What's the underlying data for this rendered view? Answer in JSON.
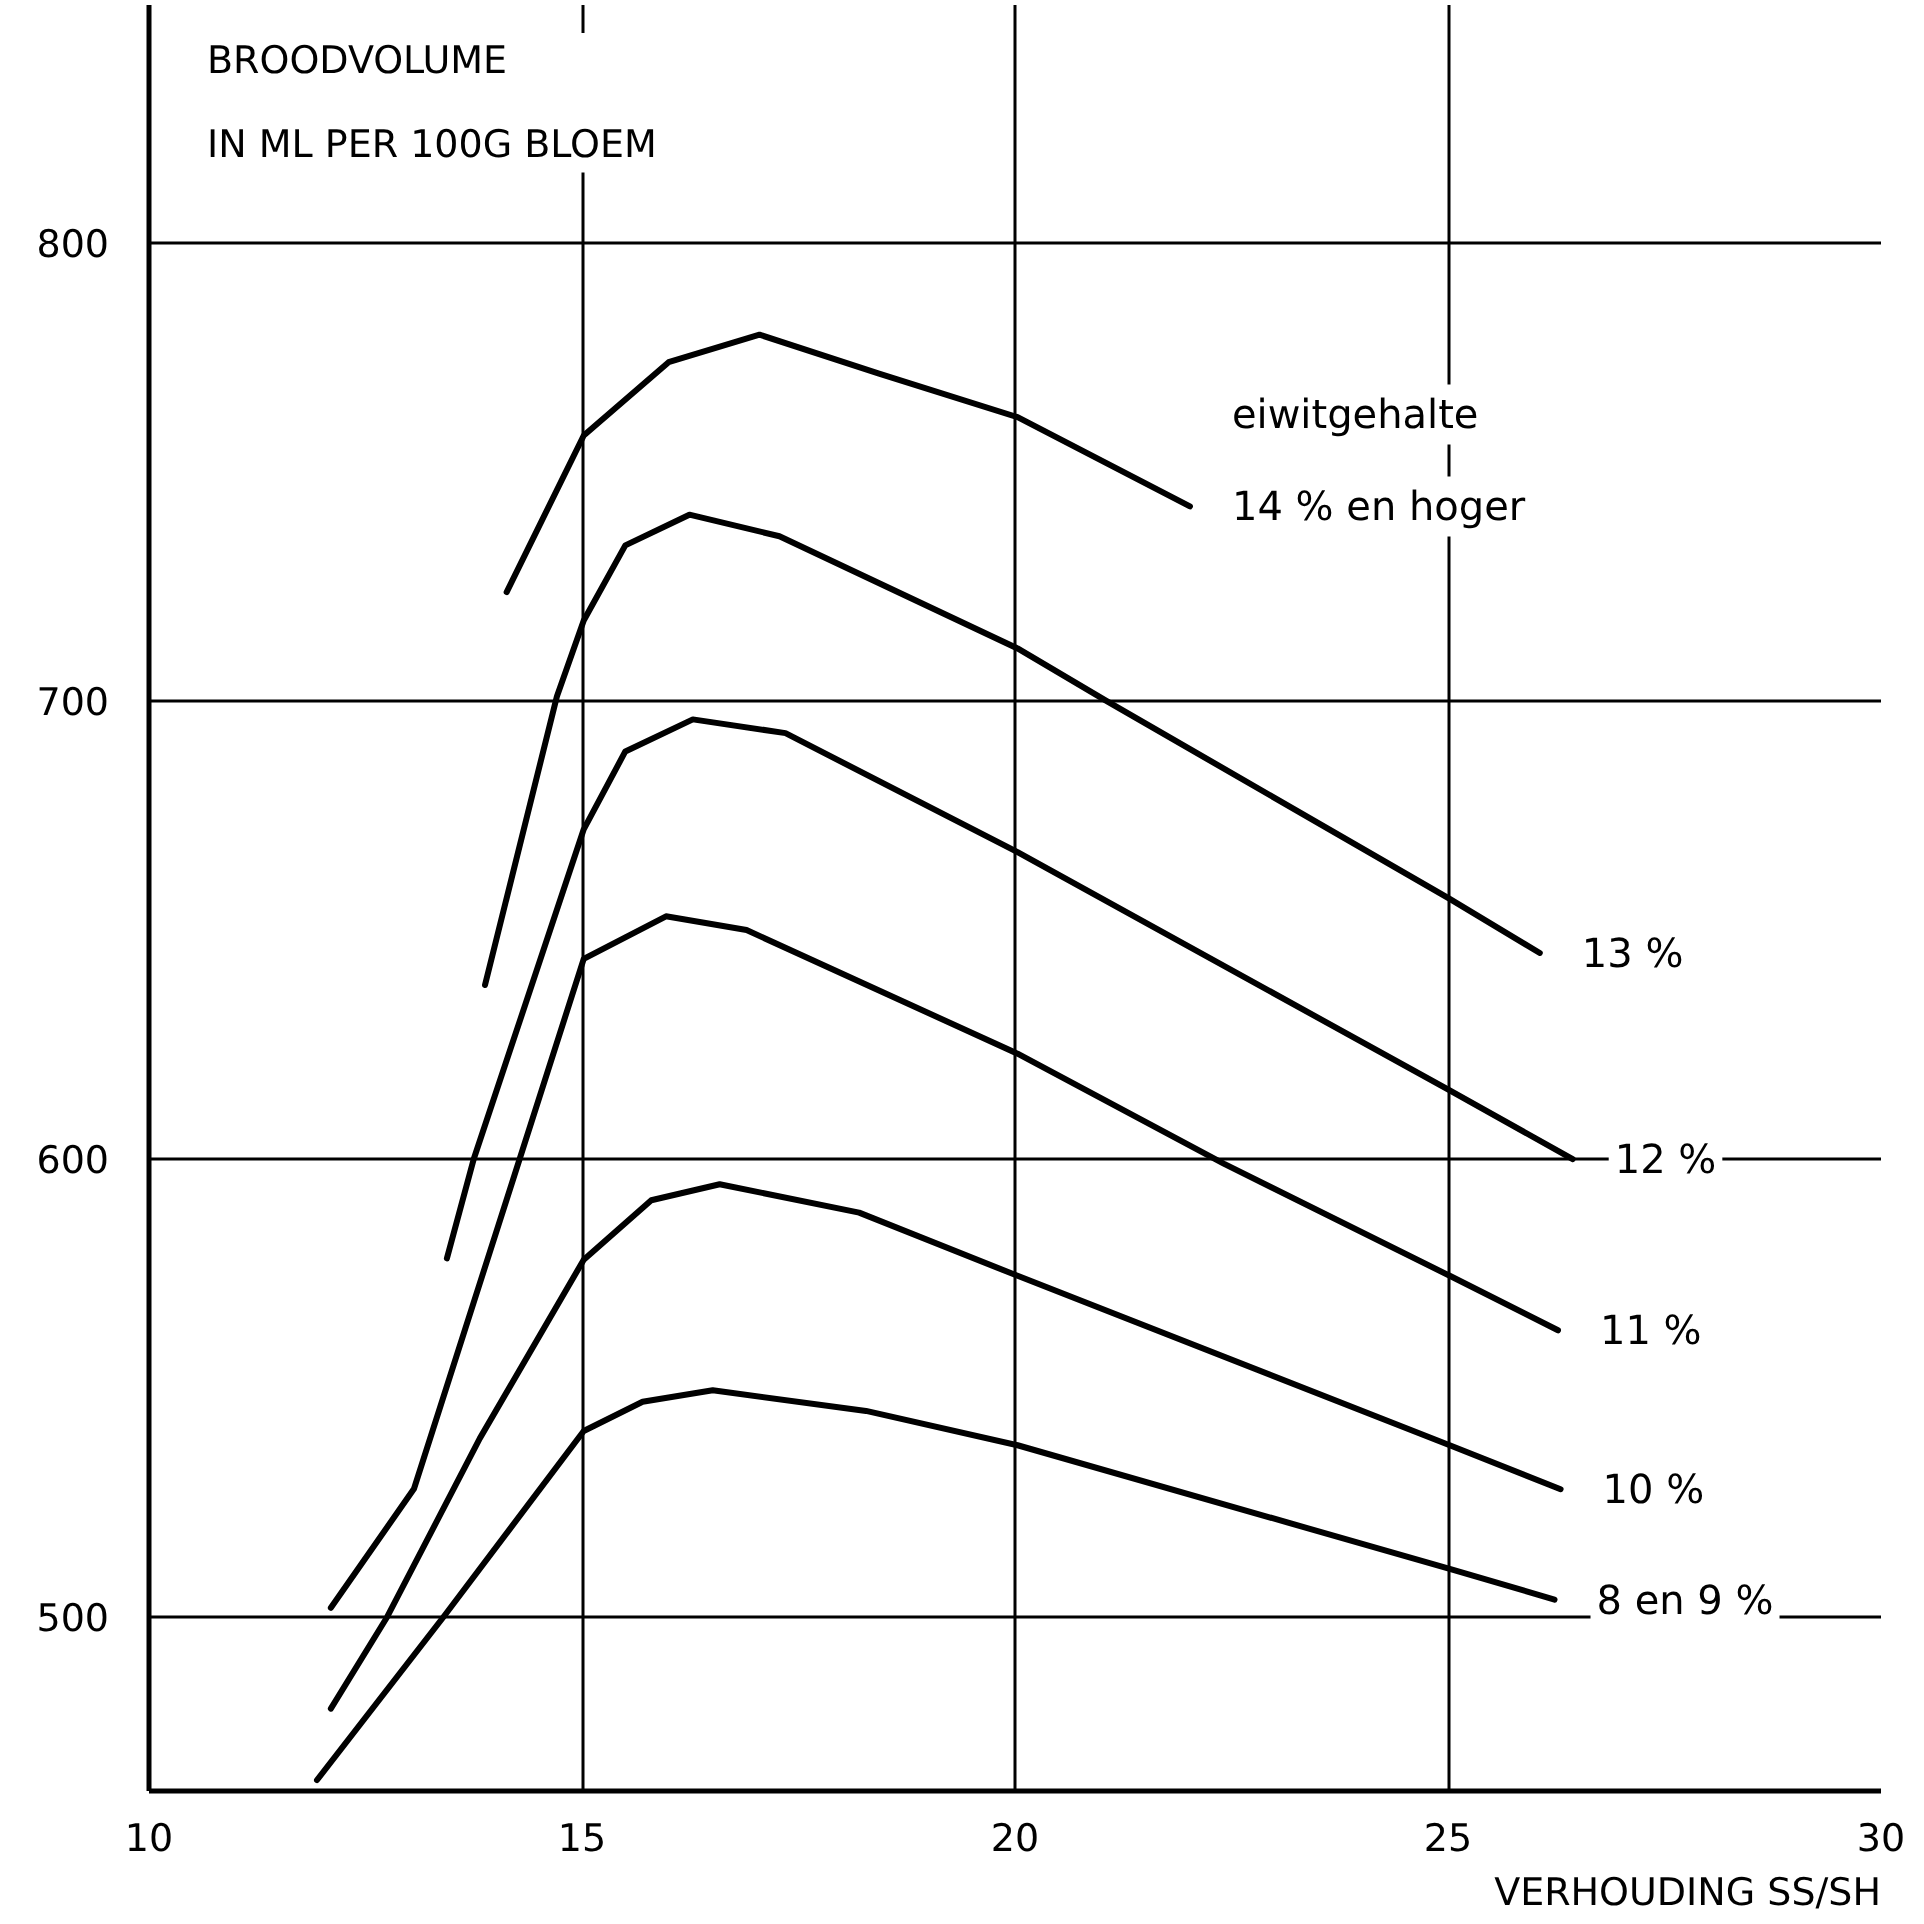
{
  "chart_data": {
    "type": "line",
    "ylabel": "BROODVOLUME\nIN ML PER 100G BLOEM",
    "xlabel": "VERHOUDING SS/SH",
    "xlim": [
      10,
      30
    ],
    "xticks": [
      10,
      15,
      20,
      25,
      30
    ],
    "ylim": [
      462,
      852
    ],
    "yticks": [
      500,
      600,
      700,
      800
    ],
    "grid": true,
    "line_style": "solid",
    "annotations": [
      {
        "text": "eiwitgehalte",
        "x": 22.02,
        "y": 742.5
      }
    ],
    "series": [
      {
        "name": "14 % en hoger",
        "color": "#000000",
        "x": [
          14.13,
          15.02,
          16.0,
          17.05,
          18.43,
          20.03,
          22.02
        ],
        "values": [
          723.8,
          758,
          774,
          780,
          771.5,
          762,
          742.5
        ]
      },
      {
        "name": "13 %",
        "color": "#000000",
        "x": [
          13.88,
          14.71,
          15.02,
          15.5,
          16.24,
          17.28,
          20.03,
          21.06,
          25.02,
          26.06
        ],
        "values": [
          638,
          701,
          717.6,
          734,
          740.7,
          736,
          711.5,
          700,
          656.8,
          645
        ]
      },
      {
        "name": "12 %",
        "color": "#000000",
        "x": [
          13.44,
          13.75,
          15.02,
          15.5,
          16.28,
          17.35,
          20.03,
          25.02,
          26.44
        ],
        "values": [
          578.3,
          600,
          672,
          689,
          696,
          693,
          667,
          615,
          600
        ]
      },
      {
        "name": "11 %",
        "color": "#000000",
        "x": [
          12.1,
          13.06,
          14.29,
          15.02,
          15.97,
          16.9,
          20.03,
          22.41,
          25.02,
          26.27
        ],
        "values": [
          502,
          528,
          600.6,
          643.7,
          653,
          650,
          623,
          599,
          574.5,
          562.6
        ]
      },
      {
        "name": "10 %",
        "color": "#000000",
        "x": [
          12.1,
          12.75,
          13.82,
          15.02,
          15.8,
          16.59,
          18.2,
          20.03,
          25.02,
          26.3
        ],
        "values": [
          480,
          500,
          539,
          578,
          591,
          594.5,
          588.3,
          574.5,
          537.5,
          527.9
        ]
      },
      {
        "name": "8 en 9 %",
        "color": "#000000",
        "x": [
          11.94,
          13.4,
          15.02,
          15.7,
          16.51,
          18.28,
          20.03,
          25.02,
          26.23
        ],
        "values": [
          464.4,
          500,
          540.6,
          547,
          549.5,
          545,
          537.5,
          510.5,
          503.8
        ]
      }
    ]
  }
}
